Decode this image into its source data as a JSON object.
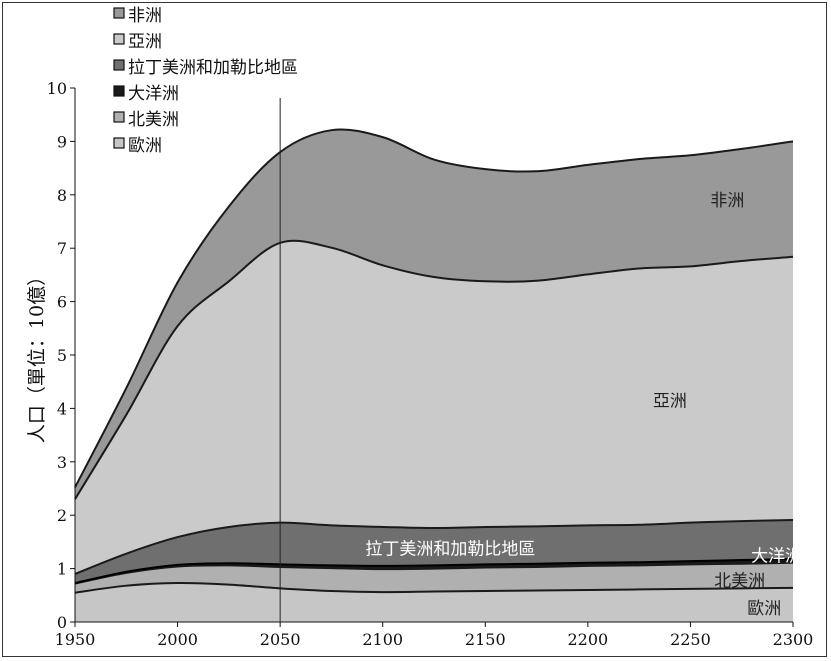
{
  "chart_data": {
    "type": "area",
    "stacked": true,
    "title": "",
    "xlabel": "",
    "ylabel": "人口（單位：10億）",
    "xlim": [
      1950,
      2300
    ],
    "ylim": [
      0,
      10
    ],
    "xticks": [
      1950,
      2000,
      2050,
      2100,
      2150,
      2200,
      2250,
      2300
    ],
    "yticks": [
      0,
      1,
      2,
      3,
      4,
      5,
      6,
      7,
      8,
      9,
      10
    ],
    "reference_line_x": 2050,
    "legend_position": "top-left",
    "x": [
      1950,
      1975,
      2000,
      2025,
      2050,
      2075,
      2100,
      2125,
      2150,
      2175,
      2200,
      2225,
      2250,
      2275,
      2300
    ],
    "series": [
      {
        "name": "歐洲",
        "color": "#c6c6c6",
        "values": [
          0.55,
          0.68,
          0.73,
          0.7,
          0.63,
          0.58,
          0.56,
          0.57,
          0.58,
          0.59,
          0.6,
          0.61,
          0.62,
          0.63,
          0.64
        ]
      },
      {
        "name": "北美洲",
        "color": "#b0b0b0",
        "values": [
          0.17,
          0.24,
          0.31,
          0.36,
          0.4,
          0.43,
          0.43,
          0.43,
          0.44,
          0.44,
          0.45,
          0.45,
          0.46,
          0.46,
          0.47
        ]
      },
      {
        "name": "大洋洲",
        "color": "#1a1a1a",
        "values": [
          0.01,
          0.02,
          0.03,
          0.04,
          0.05,
          0.05,
          0.06,
          0.06,
          0.06,
          0.06,
          0.06,
          0.06,
          0.06,
          0.07,
          0.07
        ]
      },
      {
        "name": "拉丁美洲和加勒比地區",
        "color": "#6f6f6f",
        "values": [
          0.17,
          0.34,
          0.52,
          0.68,
          0.78,
          0.75,
          0.73,
          0.7,
          0.7,
          0.7,
          0.7,
          0.7,
          0.72,
          0.73,
          0.73
        ]
      },
      {
        "name": "亞洲",
        "color": "#cacaca",
        "values": [
          1.4,
          2.6,
          3.95,
          4.6,
          5.24,
          5.2,
          4.9,
          4.7,
          4.6,
          4.6,
          4.7,
          4.8,
          4.8,
          4.87,
          4.93
        ]
      },
      {
        "name": "非洲",
        "color": "#999999",
        "values": [
          0.22,
          0.5,
          0.82,
          1.4,
          1.7,
          2.2,
          2.4,
          2.2,
          2.1,
          2.05,
          2.05,
          2.05,
          2.08,
          2.1,
          2.16
        ]
      }
    ],
    "legend_order": [
      "非洲",
      "亞洲",
      "拉丁美洲和加勒比地區",
      "大洋洲",
      "北美洲",
      "歐洲"
    ],
    "area_labels": [
      {
        "series": "非洲",
        "text": "非洲",
        "x": 2268,
        "y": 7.9,
        "color": "#222"
      },
      {
        "series": "亞洲",
        "text": "亞洲",
        "x": 2240,
        "y": 4.15,
        "color": "#222"
      },
      {
        "series": "拉丁美洲和加勒比地區",
        "text": "拉丁美洲和加勒比地區",
        "x": 2133,
        "y": 1.38,
        "color": "#ffffff"
      },
      {
        "series": "大洋洲",
        "text": "大洋洲",
        "x": 2292,
        "y": 1.25,
        "color": "#ffffff"
      },
      {
        "series": "北美洲",
        "text": "北美洲",
        "x": 2274,
        "y": 0.78,
        "color": "#222"
      },
      {
        "series": "歐洲",
        "text": "歐洲",
        "x": 2286,
        "y": 0.26,
        "color": "#222"
      }
    ]
  }
}
